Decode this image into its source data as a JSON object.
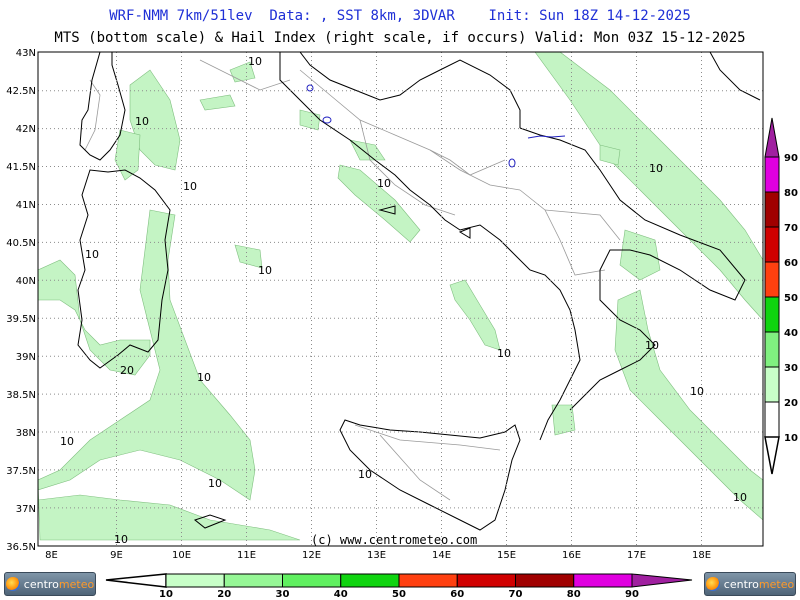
{
  "header": {
    "line1": "WRF-NMM 7km/51lev  Data: , SST 8km, 3DVAR    Init: Sun 18Z 14-12-2025",
    "line2": "MTS (bottom scale) & Hail Index (right scale, if occurs) Valid: Mon 03Z 15-12-2025"
  },
  "map": {
    "lat_labels": [
      "43N",
      "42.5N",
      "42N",
      "41.5N",
      "41N",
      "40.5N",
      "40N",
      "39.5N",
      "39N",
      "38.5N",
      "38N",
      "37.5N",
      "37N",
      "36.5N"
    ],
    "lon_labels": [
      "8E",
      "9E",
      "10E",
      "11E",
      "12E",
      "13E",
      "14E",
      "15E",
      "16E",
      "17E",
      "18E"
    ],
    "contour_labels": [
      "10",
      "10",
      "10",
      "10",
      "10",
      "10",
      "10",
      "10",
      "10",
      "20",
      "10",
      "10",
      "10",
      "10",
      "10",
      "10",
      "10"
    ],
    "copyright": "(c) www.centrometeo.com",
    "colors": {
      "mts_fill": "#c4f4c4",
      "coast": "#000000",
      "borders": "#9a9a9a",
      "grid": "#8c8c8c"
    }
  },
  "mts_scale": {
    "labels": [
      "10",
      "20",
      "30",
      "40",
      "50",
      "60",
      "70",
      "80",
      "90"
    ],
    "colors": [
      "#c8ffc8",
      "#96f796",
      "#60f060",
      "#10d410",
      "#ff4010",
      "#d00000",
      "#a00000",
      "#e000e0",
      "#a020a0"
    ]
  },
  "hail_scale": {
    "labels": [
      "10",
      "20",
      "30",
      "40",
      "50",
      "60",
      "70",
      "80",
      "90"
    ],
    "colors": [
      "#ffffff",
      "#c8ffc8",
      "#80f080",
      "#10d410",
      "#ff4010",
      "#d00000",
      "#a00000",
      "#e000e0",
      "#a020a0"
    ]
  },
  "logos": {
    "left": {
      "a": "centro",
      "b": "meteo"
    },
    "right": {
      "a": "centro",
      "b": "meteo"
    }
  }
}
